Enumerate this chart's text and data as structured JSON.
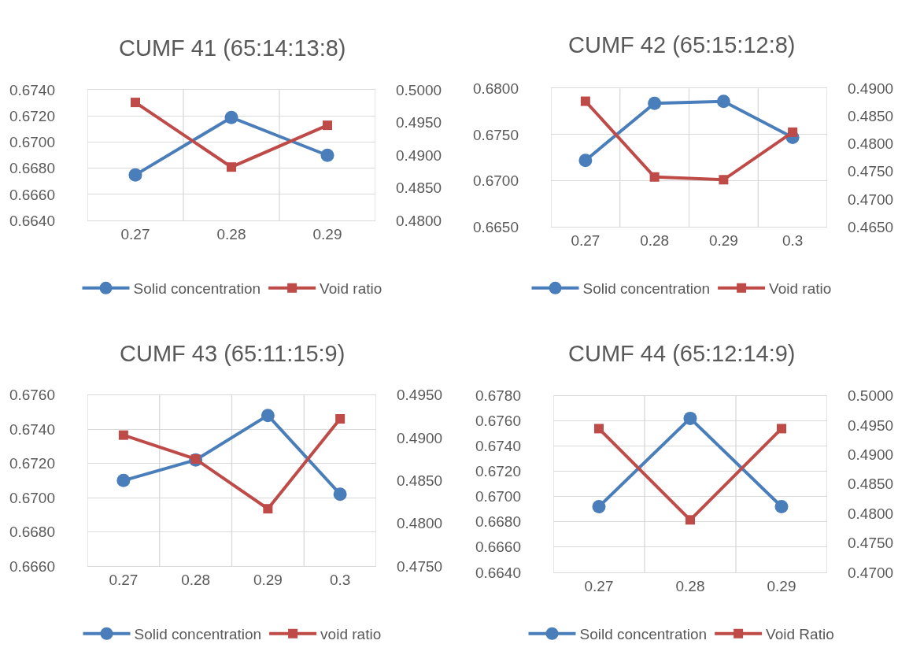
{
  "chart_data": [
    {
      "type": "line",
      "title": "CUMF 41 (65:14:13:8)",
      "categories": [
        "0.27",
        "0.28",
        "0.29"
      ],
      "grid": true,
      "legend": "bottom",
      "ylim": [
        0.664,
        0.674
      ],
      "yticks": [
        {
          "value": 0.664,
          "label": "0.6640"
        },
        {
          "value": 0.666,
          "label": "0.6660"
        },
        {
          "value": 0.668,
          "label": "0.6680"
        },
        {
          "value": 0.67,
          "label": "0.6700"
        },
        {
          "value": 0.672,
          "label": "0.6720"
        },
        {
          "value": 0.674,
          "label": "0.6740"
        }
      ],
      "y2lim": [
        0.48,
        0.5
      ],
      "y2ticks": [
        {
          "value": 0.48,
          "label": "0.4800"
        },
        {
          "value": 0.485,
          "label": "0.4850"
        },
        {
          "value": 0.49,
          "label": "0.4900"
        },
        {
          "value": 0.495,
          "label": "0.4950"
        },
        {
          "value": 0.5,
          "label": "0.5000"
        }
      ],
      "series": [
        {
          "name": "Solid concentration",
          "color": "#4a7ebb",
          "marker": "circle",
          "values": [
            0.6675,
            0.6719,
            0.669
          ]
        },
        {
          "name": "Void ratio",
          "color": "#be4b48",
          "marker": "square",
          "axis": "y2",
          "values": [
            0.4981,
            0.4882,
            0.4946
          ]
        }
      ]
    },
    {
      "type": "line",
      "title": "CUMF 42 (65:15:12:8)",
      "categories": [
        "0.27",
        "0.28",
        "0.29",
        "0.3"
      ],
      "grid": true,
      "legend": "bottom",
      "ylim": [
        0.665,
        0.68
      ],
      "yticks": [
        {
          "value": 0.665,
          "label": "0.6650"
        },
        {
          "value": 0.67,
          "label": "0.6700"
        },
        {
          "value": 0.675,
          "label": "0.6750"
        },
        {
          "value": 0.68,
          "label": "0.6800"
        }
      ],
      "y2lim": [
        0.465,
        0.49
      ],
      "y2ticks": [
        {
          "value": 0.465,
          "label": "0.4650"
        },
        {
          "value": 0.47,
          "label": "0.4700"
        },
        {
          "value": 0.475,
          "label": "0.4750"
        },
        {
          "value": 0.48,
          "label": "0.4800"
        },
        {
          "value": 0.485,
          "label": "0.4850"
        },
        {
          "value": 0.49,
          "label": "0.4900"
        }
      ],
      "series": [
        {
          "name": "Solid concentration",
          "color": "#4a7ebb",
          "marker": "circle",
          "values": [
            0.6722,
            0.6784,
            0.6786,
            0.6747
          ]
        },
        {
          "name": "Void ratio",
          "color": "#be4b48",
          "marker": "square",
          "axis": "y2",
          "values": [
            0.4877,
            0.474,
            0.4735,
            0.4821
          ]
        }
      ]
    },
    {
      "type": "line",
      "title": "CUMF 43 (65:11:15:9)",
      "categories": [
        "0.27",
        "0.28",
        "0.29",
        "0.3"
      ],
      "grid": true,
      "legend": "bottom",
      "ylim": [
        0.666,
        0.676
      ],
      "yticks": [
        {
          "value": 0.666,
          "label": "0.6660"
        },
        {
          "value": 0.668,
          "label": "0.6680"
        },
        {
          "value": 0.67,
          "label": "0.6700"
        },
        {
          "value": 0.672,
          "label": "0.6720"
        },
        {
          "value": 0.674,
          "label": "0.6740"
        },
        {
          "value": 0.676,
          "label": "0.6760"
        }
      ],
      "y2lim": [
        0.475,
        0.495
      ],
      "y2ticks": [
        {
          "value": 0.475,
          "label": "0.4750"
        },
        {
          "value": 0.48,
          "label": "0.4800"
        },
        {
          "value": 0.485,
          "label": "0.4850"
        },
        {
          "value": 0.49,
          "label": "0.4900"
        },
        {
          "value": 0.495,
          "label": "0.4950"
        }
      ],
      "series": [
        {
          "name": "Solid concentration",
          "color": "#4a7ebb",
          "marker": "circle",
          "values": [
            0.671,
            0.6722,
            0.6748,
            0.6702
          ]
        },
        {
          "name": "void ratio",
          "color": "#be4b48",
          "marker": "square",
          "axis": "y2",
          "values": [
            0.4903,
            0.4875,
            0.4817,
            0.4922
          ]
        }
      ]
    },
    {
      "type": "line",
      "title": "CUMF 44 (65:12:14:9)",
      "categories": [
        "0.27",
        "0.28",
        "0.29"
      ],
      "grid": true,
      "legend": "bottom",
      "ylim": [
        0.664,
        0.678
      ],
      "yticks": [
        {
          "value": 0.664,
          "label": "0.6640"
        },
        {
          "value": 0.666,
          "label": "0.6660"
        },
        {
          "value": 0.668,
          "label": "0.6680"
        },
        {
          "value": 0.67,
          "label": "0.6700"
        },
        {
          "value": 0.672,
          "label": "0.6720"
        },
        {
          "value": 0.674,
          "label": "0.6740"
        },
        {
          "value": 0.676,
          "label": "0.6760"
        },
        {
          "value": 0.678,
          "label": "0.6780"
        }
      ],
      "y2lim": [
        0.47,
        0.5
      ],
      "y2ticks": [
        {
          "value": 0.47,
          "label": "0.4700"
        },
        {
          "value": 0.475,
          "label": "0.4750"
        },
        {
          "value": 0.48,
          "label": "0.4800"
        },
        {
          "value": 0.485,
          "label": "0.4850"
        },
        {
          "value": 0.49,
          "label": "0.4900"
        },
        {
          "value": 0.495,
          "label": "0.4950"
        },
        {
          "value": 0.5,
          "label": "0.5000"
        }
      ],
      "series": [
        {
          "name": "Soild concentration",
          "color": "#4a7ebb",
          "marker": "circle",
          "values": [
            0.6692,
            0.6762,
            0.6692
          ]
        },
        {
          "name": "Void Ratio",
          "color": "#be4b48",
          "marker": "square",
          "axis": "y2",
          "values": [
            0.4944,
            0.4789,
            0.4944
          ]
        }
      ]
    }
  ]
}
